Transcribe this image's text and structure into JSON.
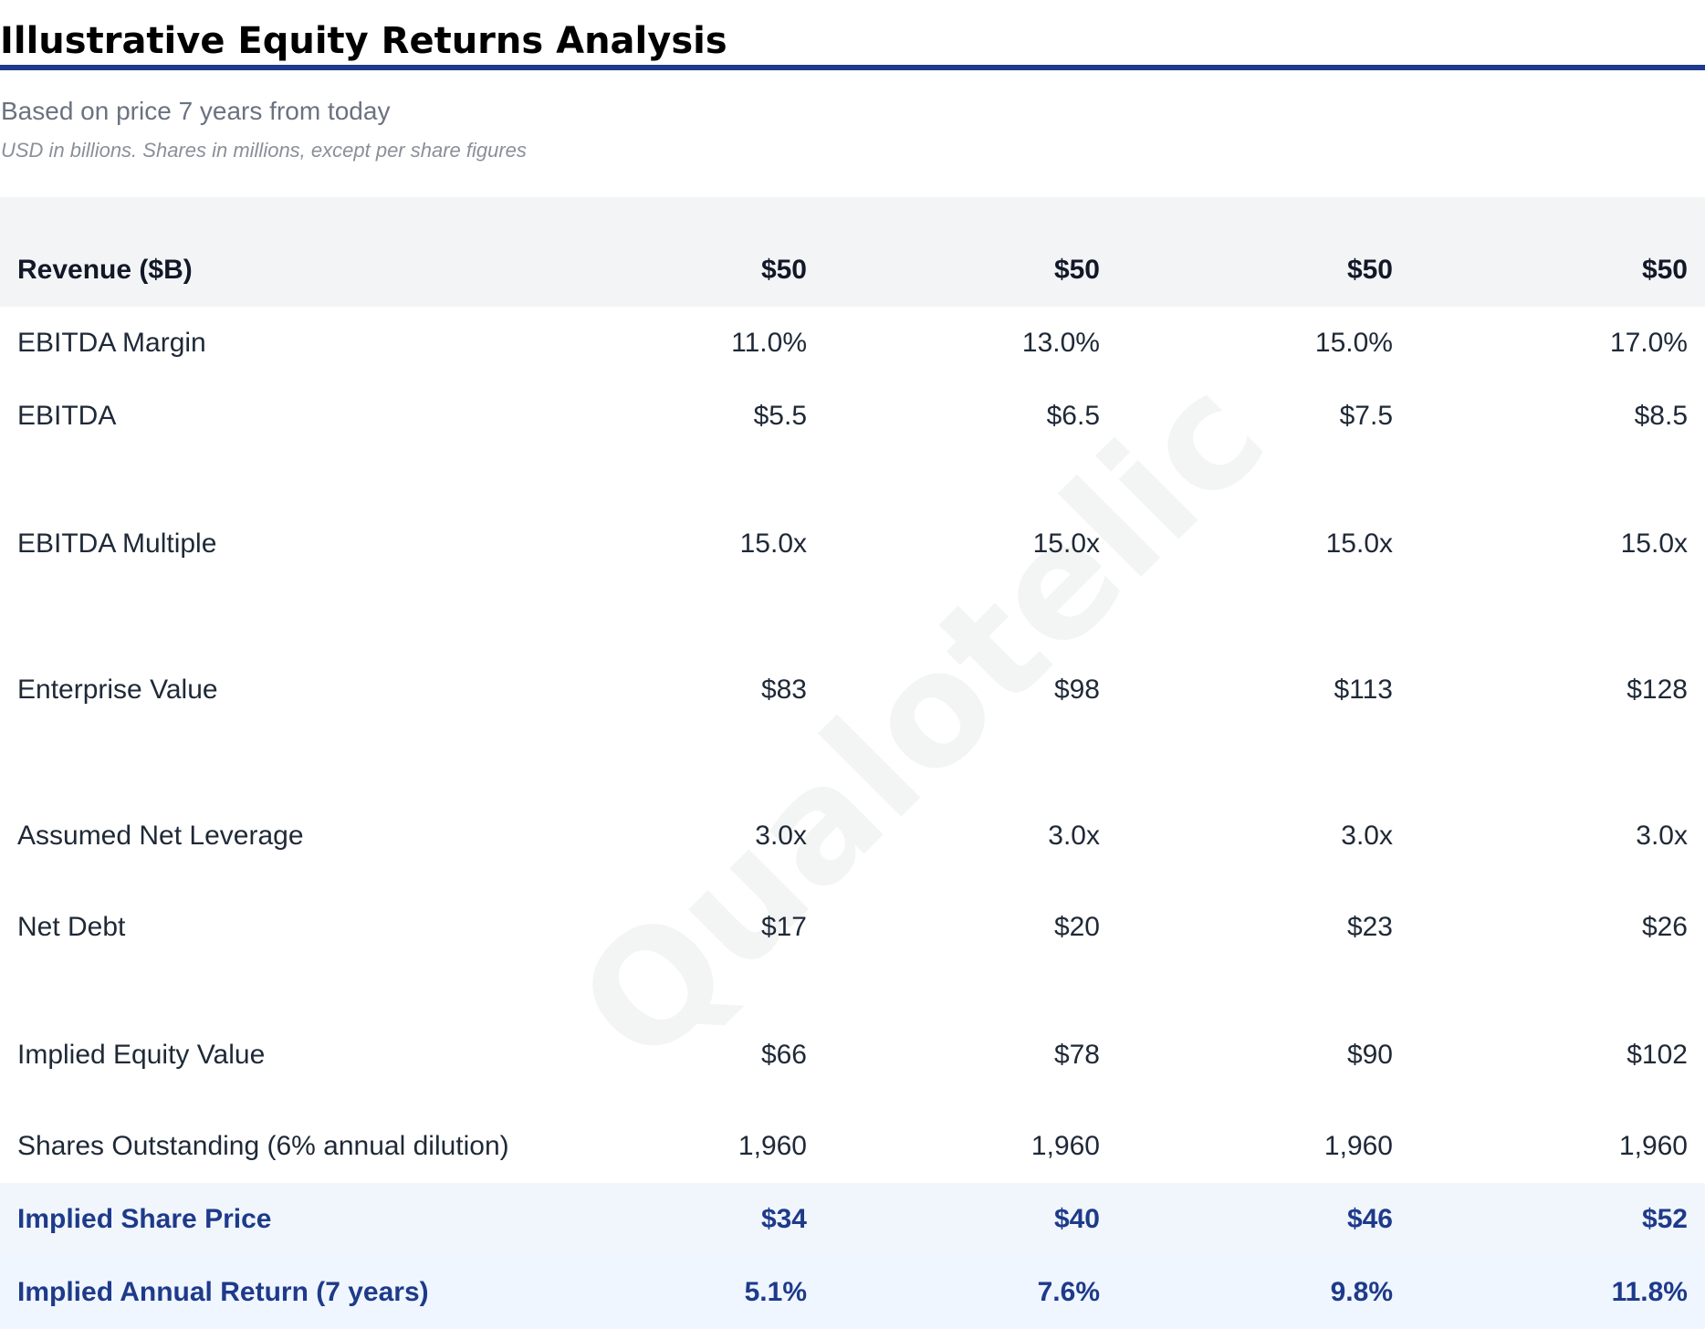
{
  "header": {
    "title": "Illustrative Equity Returns Analysis",
    "subtitle": "Based on price 7 years from today",
    "note": "USD in billions. Shares in millions, except per share figures"
  },
  "watermark": "Qualotelic",
  "colors": {
    "accent": "#1e3a8a",
    "highlight_bg": "#eff6ff",
    "header_bg": "#f3f4f6"
  },
  "table": {
    "header": {
      "label": "Revenue ($B)",
      "values": [
        "$50",
        "$50",
        "$50",
        "$50"
      ]
    },
    "rows": [
      {
        "label": "EBITDA Margin",
        "values": [
          "11.0%",
          "13.0%",
          "15.0%",
          "17.0%"
        ]
      },
      {
        "label": "EBITDA",
        "values": [
          "$5.5",
          "$6.5",
          "$7.5",
          "$8.5"
        ]
      },
      {
        "label": "EBITDA Multiple",
        "values": [
          "15.0x",
          "15.0x",
          "15.0x",
          "15.0x"
        ]
      },
      {
        "label": "Enterprise Value",
        "values": [
          "$83",
          "$98",
          "$113",
          "$128"
        ]
      },
      {
        "label": "Assumed Net Leverage",
        "values": [
          "3.0x",
          "3.0x",
          "3.0x",
          "3.0x"
        ]
      },
      {
        "label": "Net Debt",
        "values": [
          "$17",
          "$20",
          "$23",
          "$26"
        ]
      },
      {
        "label": "Implied Equity Value",
        "values": [
          "$66",
          "$78",
          "$90",
          "$102"
        ]
      },
      {
        "label": "Shares Outstanding (6% annual dilution)",
        "values": [
          "1,960",
          "1,960",
          "1,960",
          "1,960"
        ]
      }
    ],
    "highlights": [
      {
        "label": "Implied Share Price",
        "values": [
          "$34",
          "$40",
          "$46",
          "$52"
        ]
      },
      {
        "label": "Implied Annual Return (7 years)",
        "values": [
          "5.1%",
          "7.6%",
          "9.8%",
          "11.8%"
        ]
      }
    ]
  }
}
